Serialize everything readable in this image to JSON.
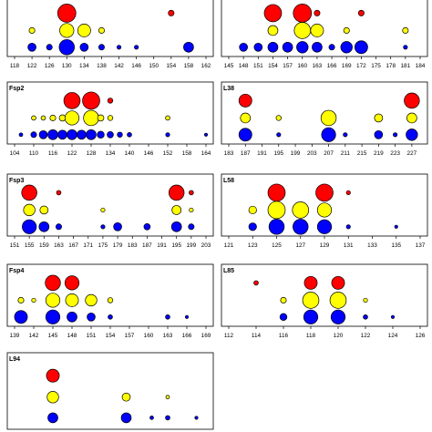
{
  "colors": {
    "top": "#ff0000",
    "middle": "#ffff00",
    "bottom": "#0000ff",
    "outline": "#000000",
    "frame": "#000000"
  },
  "chart_data": [
    {
      "type": "scatter",
      "panel_label": "",
      "xlim": [
        118,
        162
      ],
      "x_ticks": [
        118,
        122,
        126,
        130,
        134,
        138,
        142,
        146,
        150,
        154,
        158,
        162
      ],
      "rows": [
        {
          "color": "red",
          "points": [
            [
              130,
              10
            ],
            [
              154,
              1
            ]
          ]
        },
        {
          "color": "yellow",
          "points": [
            [
              122,
              1
            ],
            [
              130,
              6
            ],
            [
              134,
              5
            ],
            [
              138,
              1
            ]
          ]
        },
        {
          "color": "blue",
          "points": [
            [
              122,
              2
            ],
            [
              126,
              1
            ],
            [
              130,
              7
            ],
            [
              134,
              2
            ],
            [
              138,
              1
            ],
            [
              142,
              0.5
            ],
            [
              146,
              0.5
            ],
            [
              158,
              3
            ]
          ]
        }
      ]
    },
    {
      "type": "scatter",
      "panel_label": "",
      "xlim": [
        145,
        184
      ],
      "x_ticks": [
        145,
        148,
        151,
        154,
        157,
        160,
        163,
        166,
        169,
        172,
        175,
        178,
        181,
        184
      ],
      "rows": [
        {
          "color": "red",
          "points": [
            [
              154,
              9
            ],
            [
              160,
              10
            ],
            [
              163,
              1
            ],
            [
              172,
              1
            ]
          ]
        },
        {
          "color": "yellow",
          "points": [
            [
              154,
              3
            ],
            [
              160,
              8
            ],
            [
              163,
              5
            ],
            [
              169,
              1
            ],
            [
              181,
              1
            ]
          ]
        },
        {
          "color": "blue",
          "points": [
            [
              148,
              2
            ],
            [
              151,
              2
            ],
            [
              154,
              3
            ],
            [
              157,
              3
            ],
            [
              160,
              4
            ],
            [
              163,
              3
            ],
            [
              166,
              1
            ],
            [
              169,
              4
            ],
            [
              172,
              5
            ],
            [
              181,
              0.5
            ]
          ]
        }
      ]
    },
    {
      "type": "scatter",
      "panel_label": "Fsp2",
      "xlim": [
        104,
        164
      ],
      "x_ticks": [
        104,
        110,
        116,
        122,
        128,
        134,
        140,
        146,
        152,
        158,
        164
      ],
      "rows": [
        {
          "color": "red",
          "points": [
            [
              122,
              8
            ],
            [
              128,
              9
            ],
            [
              134,
              0.8
            ]
          ]
        },
        {
          "color": "yellow",
          "points": [
            [
              110,
              0.6
            ],
            [
              113,
              0.6
            ],
            [
              116,
              1
            ],
            [
              119,
              1.2
            ],
            [
              122,
              6
            ],
            [
              128,
              7
            ],
            [
              131,
              1.2
            ],
            [
              134,
              0.8
            ],
            [
              152,
              0.6
            ]
          ]
        },
        {
          "color": "blue",
          "points": [
            [
              106,
              0.4
            ],
            [
              110,
              1
            ],
            [
              113,
              2
            ],
            [
              116,
              3
            ],
            [
              119,
              2.5
            ],
            [
              122,
              3
            ],
            [
              125,
              2.5
            ],
            [
              128,
              3
            ],
            [
              131,
              1.5
            ],
            [
              134,
              1.2
            ],
            [
              137,
              0.8
            ],
            [
              140,
              0.6
            ],
            [
              152,
              0.5
            ],
            [
              164,
              0.3
            ]
          ]
        }
      ]
    },
    {
      "type": "scatter",
      "panel_label": "L38",
      "xlim": [
        183,
        229
      ],
      "x_ticks": [
        183,
        187,
        191,
        195,
        199,
        203,
        207,
        211,
        215,
        219,
        223,
        227
      ],
      "rows": [
        {
          "color": "red",
          "points": [
            [
              187,
              5
            ],
            [
              227,
              7
            ]
          ]
        },
        {
          "color": "yellow",
          "points": [
            [
              187,
              3
            ],
            [
              195,
              0.8
            ],
            [
              207,
              7
            ],
            [
              219,
              2
            ],
            [
              227,
              3
            ]
          ]
        },
        {
          "color": "blue",
          "points": [
            [
              187,
              5
            ],
            [
              195,
              0.5
            ],
            [
              207,
              6
            ],
            [
              211,
              0.5
            ],
            [
              219,
              2
            ],
            [
              223,
              0.5
            ],
            [
              227,
              4
            ]
          ]
        }
      ]
    },
    {
      "type": "scatter",
      "panel_label": "Fsp3",
      "xlim": [
        151,
        203
      ],
      "x_ticks": [
        151,
        155,
        159,
        163,
        167,
        171,
        175,
        179,
        183,
        187,
        191,
        195,
        199,
        203
      ],
      "rows": [
        {
          "color": "red",
          "points": [
            [
              155,
              7
            ],
            [
              163,
              0.6
            ],
            [
              195,
              7
            ],
            [
              199,
              0.6
            ]
          ]
        },
        {
          "color": "yellow",
          "points": [
            [
              155,
              4
            ],
            [
              159,
              2
            ],
            [
              175,
              0.5
            ],
            [
              195,
              2.5
            ],
            [
              199,
              0.5
            ]
          ]
        },
        {
          "color": "blue",
          "points": [
            [
              155,
              6
            ],
            [
              159,
              3
            ],
            [
              163,
              1
            ],
            [
              175,
              0.5
            ],
            [
              179,
              2
            ],
            [
              187,
              1.2
            ],
            [
              195,
              3
            ],
            [
              199,
              1
            ]
          ]
        }
      ]
    },
    {
      "type": "scatter",
      "panel_label": "L58",
      "xlim": [
        121,
        137
      ],
      "x_ticks": [
        121,
        123,
        125,
        127,
        129,
        131,
        133,
        135,
        137
      ],
      "rows": [
        {
          "color": "red",
          "points": [
            [
              125,
              9
            ],
            [
              129,
              9
            ],
            [
              131,
              0.5
            ]
          ]
        },
        {
          "color": "yellow",
          "points": [
            [
              123,
              1.8
            ],
            [
              125,
              9
            ],
            [
              127,
              8
            ],
            [
              129,
              6
            ]
          ]
        },
        {
          "color": "blue",
          "points": [
            [
              123,
              1.8
            ],
            [
              125,
              7
            ],
            [
              127,
              7
            ],
            [
              129,
              6
            ],
            [
              131,
              0.5
            ],
            [
              135,
              0.3
            ]
          ]
        }
      ]
    },
    {
      "type": "scatter",
      "panel_label": "Fsp4",
      "xlim": [
        139,
        169
      ],
      "x_ticks": [
        139,
        142,
        145,
        148,
        151,
        154,
        157,
        160,
        163,
        166,
        169
      ],
      "rows": [
        {
          "color": "red",
          "points": [
            [
              145,
              7
            ],
            [
              148,
              6
            ]
          ]
        },
        {
          "color": "yellow",
          "points": [
            [
              140,
              1
            ],
            [
              142,
              0.5
            ],
            [
              145,
              6
            ],
            [
              148,
              5
            ],
            [
              151,
              4
            ],
            [
              154,
              0.8
            ]
          ]
        },
        {
          "color": "blue",
          "points": [
            [
              140,
              5
            ],
            [
              145,
              6
            ],
            [
              148,
              3
            ],
            [
              151,
              2
            ],
            [
              154,
              0.6
            ],
            [
              163,
              0.6
            ],
            [
              166,
              0.3
            ]
          ]
        }
      ]
    },
    {
      "type": "scatter",
      "panel_label": "L85",
      "xlim": [
        112,
        126
      ],
      "x_ticks": [
        112,
        114,
        116,
        118,
        120,
        122,
        124,
        126
      ],
      "rows": [
        {
          "color": "red",
          "points": [
            [
              114,
              0.6
            ],
            [
              118,
              5
            ],
            [
              120,
              5
            ]
          ]
        },
        {
          "color": "yellow",
          "points": [
            [
              116,
              1
            ],
            [
              118,
              8
            ],
            [
              120,
              8
            ],
            [
              122,
              0.5
            ]
          ]
        },
        {
          "color": "blue",
          "points": [
            [
              116,
              1.5
            ],
            [
              118,
              6
            ],
            [
              120,
              6
            ],
            [
              122,
              0.6
            ],
            [
              124,
              0.3
            ]
          ]
        }
      ]
    },
    {
      "type": "scatter",
      "panel_label": "L94",
      "xlim": [
        100,
        160
      ],
      "x_ticks": [],
      "rows": [
        {
          "color": "red",
          "points": [
            [
              112,
              5
            ]
          ]
        },
        {
          "color": "yellow",
          "points": [
            [
              112,
              4
            ],
            [
              135,
              2
            ],
            [
              148,
              0.4
            ]
          ]
        },
        {
          "color": "blue",
          "points": [
            [
              112,
              3
            ],
            [
              135,
              3
            ],
            [
              143,
              0.4
            ],
            [
              148,
              0.6
            ],
            [
              157,
              0.3
            ]
          ]
        }
      ]
    }
  ]
}
